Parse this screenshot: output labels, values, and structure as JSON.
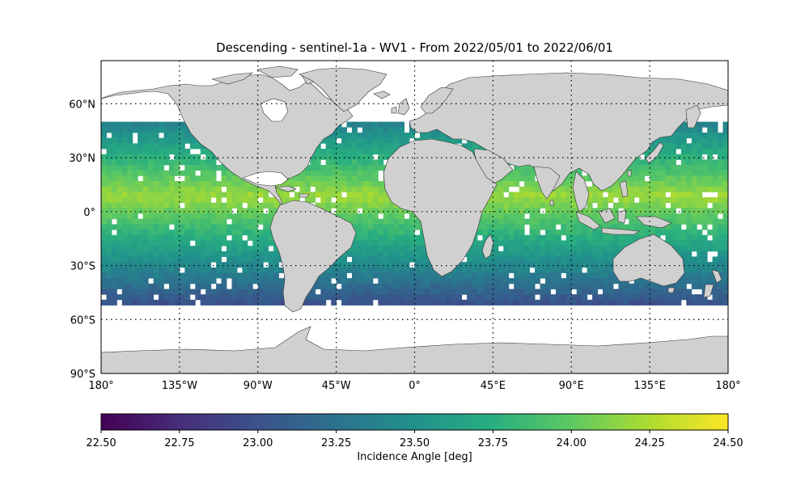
{
  "title": "Descending - sentinel-1a - WV1 - From 2022/05/01 to 2022/06/01",
  "map": {
    "projection": "equirectangular",
    "lon_range": [
      -180,
      180
    ],
    "lat_range": [
      -90,
      90
    ],
    "lon_ticks": [
      {
        "value": -180,
        "label": "180°"
      },
      {
        "value": -135,
        "label": "135°W"
      },
      {
        "value": -90,
        "label": "90°W"
      },
      {
        "value": -45,
        "label": "45°W"
      },
      {
        "value": 0,
        "label": "0°"
      },
      {
        "value": 45,
        "label": "45°E"
      },
      {
        "value": 90,
        "label": "90°E"
      },
      {
        "value": 135,
        "label": "135°E"
      },
      {
        "value": 180,
        "label": "180°"
      }
    ],
    "lat_ticks": [
      {
        "value": 60,
        "label": "60°N"
      },
      {
        "value": 30,
        "label": "30°N"
      },
      {
        "value": 0,
        "label": "0°"
      },
      {
        "value": -30,
        "label": "30°S"
      },
      {
        "value": -60,
        "label": "60°S"
      },
      {
        "value": -90,
        "label": "90°S"
      }
    ],
    "grid": "dotted",
    "land_color": "#d0d0d0",
    "coast_color": "#333333",
    "data_coverage_lat": [
      -50,
      50
    ],
    "colormap": "viridis"
  },
  "colorbar": {
    "label": "Incidence Angle [deg]",
    "range": [
      22.5,
      24.5
    ],
    "ticks": [
      "22.50",
      "22.75",
      "23.00",
      "23.25",
      "23.50",
      "23.75",
      "24.00",
      "24.25",
      "24.50"
    ]
  }
}
